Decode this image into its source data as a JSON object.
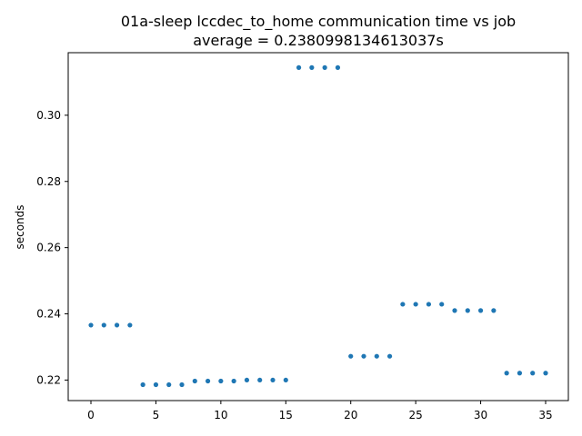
{
  "chart_data": {
    "type": "scatter",
    "title": "01a-sleep lccdec_to_home communication time vs job",
    "subtitle": "average = 0.2380998134613037s",
    "xlabel": "",
    "ylabel": "seconds",
    "xlim": [
      -1.75,
      36.75
    ],
    "ylim": [
      0.2138,
      0.3189
    ],
    "xticks": [
      0,
      5,
      10,
      15,
      20,
      25,
      30,
      35
    ],
    "xtick_labels": [
      "0",
      "5",
      "10",
      "15",
      "20",
      "25",
      "30",
      "35"
    ],
    "yticks": [
      0.22,
      0.24,
      0.26,
      0.28,
      0.3
    ],
    "ytick_labels": [
      "0.22",
      "0.24",
      "0.26",
      "0.28",
      "0.30"
    ],
    "grid": false,
    "marker_color": "#1f77b4",
    "series": [
      {
        "x": [
          0,
          1,
          2,
          3,
          4,
          5,
          6,
          7,
          8,
          9,
          10,
          11,
          12,
          13,
          14,
          15,
          16,
          17,
          18,
          19,
          20,
          21,
          22,
          23,
          24,
          25,
          26,
          27,
          28,
          29,
          30,
          31,
          32,
          33,
          34,
          35
        ],
        "y": [
          0.2366,
          0.2366,
          0.2366,
          0.2366,
          0.2186,
          0.2186,
          0.2186,
          0.2186,
          0.2197,
          0.2197,
          0.2197,
          0.2197,
          0.22,
          0.22,
          0.22,
          0.22,
          0.3144,
          0.3144,
          0.3144,
          0.3144,
          0.2272,
          0.2272,
          0.2272,
          0.2272,
          0.2429,
          0.2429,
          0.2429,
          0.2429,
          0.241,
          0.241,
          0.241,
          0.241,
          0.2221,
          0.2221,
          0.2221,
          0.2221
        ]
      }
    ]
  }
}
